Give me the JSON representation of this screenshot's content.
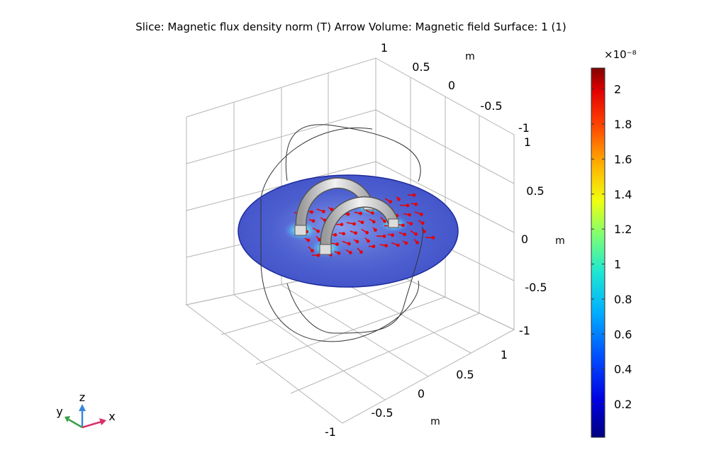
{
  "chart_data": {
    "type": "heatmap",
    "title": "Slice: Magnetic flux density norm (T)  Arrow Volume: Magnetic field  Surface: 1 (1)",
    "axes": {
      "x": {
        "label": "m",
        "ticks": [
          "1",
          "0.5",
          "0",
          "-0.5",
          "-1"
        ],
        "range": [
          -1,
          1
        ]
      },
      "y": {
        "label": "m",
        "ticks": [
          "1",
          "0.5",
          "0",
          "-0.5",
          "-1"
        ],
        "range": [
          -1,
          1
        ]
      },
      "z": {
        "label": "m",
        "ticks": [
          "1",
          "0.5",
          "0",
          "-0.5",
          "-1"
        ],
        "range": [
          -1,
          1
        ]
      }
    },
    "grid": true,
    "colorbar": {
      "exponent": "×10⁻⁸",
      "ticks": [
        "2",
        "1.8",
        "1.6",
        "1.4",
        "1.2",
        "1",
        "0.8",
        "0.6",
        "0.4",
        "0.2"
      ],
      "min": 0.01,
      "max": 2.12,
      "colormap": "rainbow"
    },
    "triad": {
      "x": "x",
      "y": "y",
      "z": "z"
    }
  }
}
